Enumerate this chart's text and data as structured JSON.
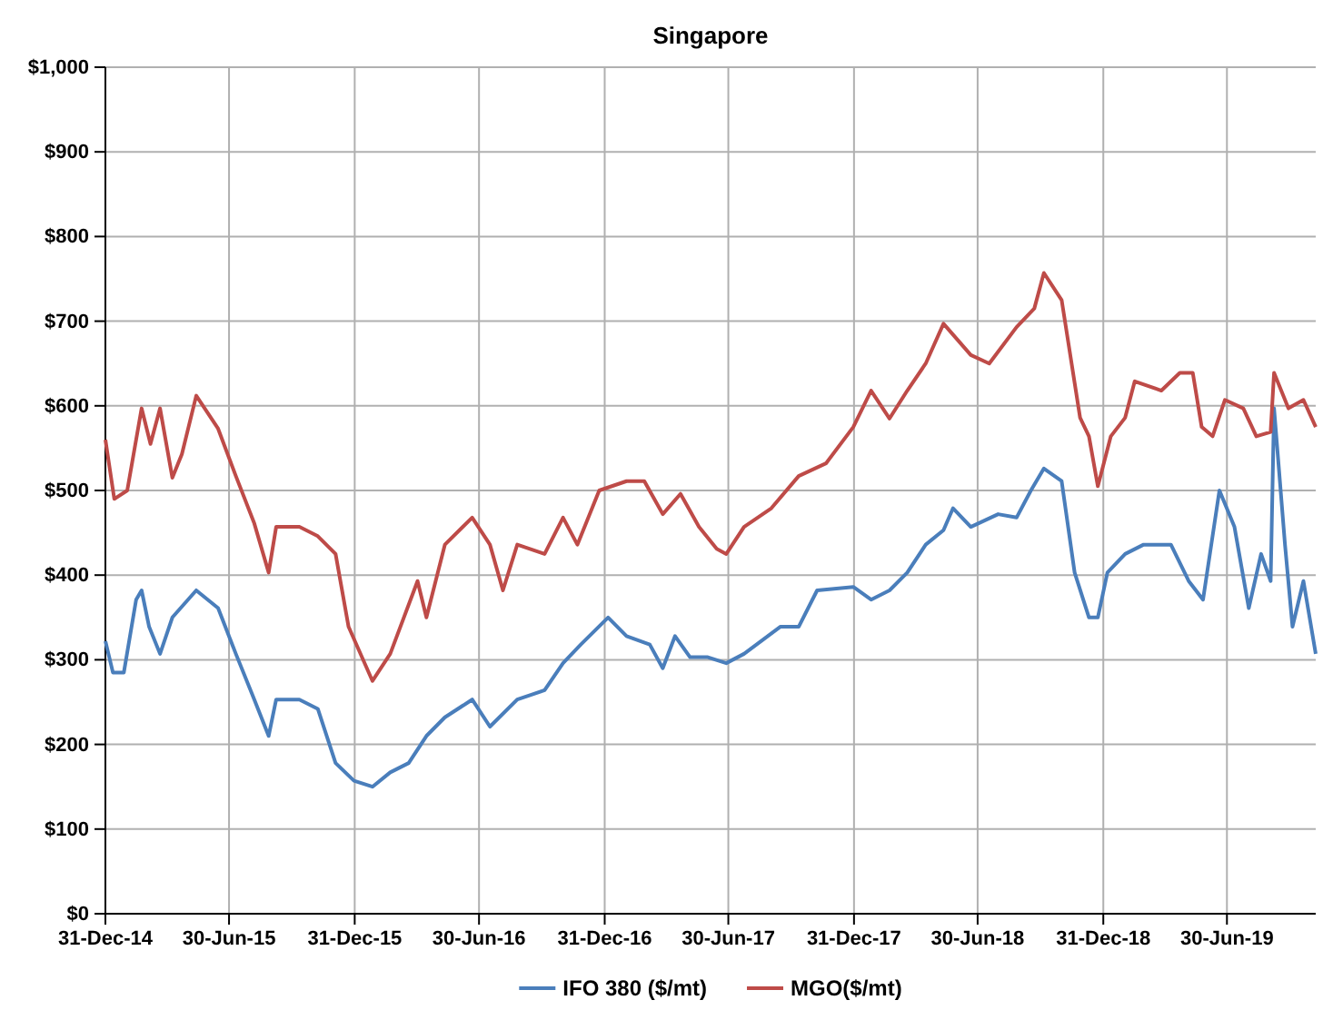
{
  "chart_data": {
    "type": "line",
    "title": "Singapore",
    "xlim": [
      "2014-12-31",
      "2019-11-07"
    ],
    "xticks": [
      {
        "value": "2014-12-31",
        "label": "31-Dec-14"
      },
      {
        "value": "2015-06-30",
        "label": "30-Jun-15"
      },
      {
        "value": "2015-12-31",
        "label": "31-Dec-15"
      },
      {
        "value": "2016-06-30",
        "label": "30-Jun-16"
      },
      {
        "value": "2016-12-31",
        "label": "31-Dec-16"
      },
      {
        "value": "2017-06-30",
        "label": "30-Jun-17"
      },
      {
        "value": "2017-12-31",
        "label": "31-Dec-17"
      },
      {
        "value": "2018-06-30",
        "label": "30-Jun-18"
      },
      {
        "value": "2018-12-31",
        "label": "31-Dec-18"
      },
      {
        "value": "2019-06-30",
        "label": "30-Jun-19"
      }
    ],
    "ylim": [
      0,
      1000
    ],
    "yticks": [
      {
        "value": 0,
        "label": "$0"
      },
      {
        "value": 100,
        "label": "$100"
      },
      {
        "value": 200,
        "label": "$200"
      },
      {
        "value": 300,
        "label": "$300"
      },
      {
        "value": 400,
        "label": "$400"
      },
      {
        "value": 500,
        "label": "$500"
      },
      {
        "value": 600,
        "label": "$600"
      },
      {
        "value": 700,
        "label": "$700"
      },
      {
        "value": 800,
        "label": "$800"
      },
      {
        "value": 900,
        "label": "$900"
      },
      {
        "value": 1000,
        "label": "$1,000"
      }
    ],
    "grid": true,
    "legend": "bottom",
    "line_style": "solid",
    "marker": "none",
    "series": [
      {
        "name": "IFO 380 ($/mt)",
        "color": "#4a7ebb",
        "x": [
          "2014-12-31",
          "2015-01-11",
          "2015-01-27",
          "2015-02-14",
          "2015-02-22",
          "2015-03-05",
          "2015-03-21",
          "2015-04-08",
          "2015-05-13",
          "2015-06-14",
          "2015-07-10",
          "2015-08-06",
          "2015-08-27",
          "2015-09-07",
          "2015-10-11",
          "2015-11-07",
          "2015-12-03",
          "2015-12-30",
          "2016-01-26",
          "2016-02-21",
          "2016-03-19",
          "2016-04-14",
          "2016-05-11",
          "2016-06-20",
          "2016-07-16",
          "2016-08-25",
          "2016-10-04",
          "2016-10-31",
          "2016-11-26",
          "2017-01-05",
          "2017-02-01",
          "2017-03-07",
          "2017-03-26",
          "2017-04-13",
          "2017-05-05",
          "2017-05-31",
          "2017-06-27",
          "2017-07-23",
          "2017-09-14",
          "2017-10-11",
          "2017-11-07",
          "2017-12-30",
          "2018-01-25",
          "2018-02-21",
          "2018-03-19",
          "2018-04-15",
          "2018-05-11",
          "2018-05-25",
          "2018-06-20",
          "2018-07-30",
          "2018-08-26",
          "2018-09-16",
          "2018-10-05",
          "2018-10-31",
          "2018-11-19",
          "2018-12-10",
          "2018-12-23",
          "2019-01-06",
          "2019-02-01",
          "2019-02-28",
          "2019-04-09",
          "2019-05-05",
          "2019-05-26",
          "2019-06-19",
          "2019-07-11",
          "2019-08-01",
          "2019-08-19",
          "2019-09-02",
          "2019-09-07",
          "2019-09-23",
          "2019-10-04",
          "2019-10-20",
          "2019-11-07"
        ],
        "values": [
          322,
          285,
          285,
          371,
          382,
          339,
          307,
          350,
          382,
          361,
          307,
          253,
          210,
          253,
          253,
          242,
          178,
          157,
          150,
          167,
          178,
          210,
          232,
          253,
          221,
          253,
          264,
          296,
          318,
          350,
          328,
          318,
          290,
          328,
          303,
          303,
          296,
          307,
          339,
          339,
          382,
          386,
          371,
          382,
          403,
          436,
          453,
          479,
          457,
          472,
          468,
          500,
          526,
          511,
          403,
          350,
          350,
          403,
          425,
          436,
          436,
          393,
          371,
          500,
          457,
          361,
          425,
          393,
          597,
          436,
          339,
          393,
          307
        ]
      },
      {
        "name": "MGO($/mt)",
        "color": "#be4b48",
        "x": [
          "2014-12-31",
          "2015-01-13",
          "2015-02-01",
          "2015-02-22",
          "2015-03-07",
          "2015-03-21",
          "2015-04-08",
          "2015-04-22",
          "2015-05-13",
          "2015-06-14",
          "2015-07-10",
          "2015-08-06",
          "2015-08-27",
          "2015-09-07",
          "2015-10-11",
          "2015-11-07",
          "2015-12-03",
          "2015-12-22",
          "2016-01-26",
          "2016-02-21",
          "2016-04-01",
          "2016-04-14",
          "2016-05-11",
          "2016-06-20",
          "2016-07-16",
          "2016-08-04",
          "2016-08-25",
          "2016-10-04",
          "2016-10-31",
          "2016-11-21",
          "2016-12-23",
          "2017-02-01",
          "2017-02-27",
          "2017-03-26",
          "2017-04-21",
          "2017-05-18",
          "2017-06-13",
          "2017-06-27",
          "2017-07-23",
          "2017-09-01",
          "2017-10-11",
          "2017-11-20",
          "2017-12-30",
          "2018-01-25",
          "2018-02-21",
          "2018-03-19",
          "2018-04-15",
          "2018-05-11",
          "2018-06-20",
          "2018-07-17",
          "2018-08-26",
          "2018-09-21",
          "2018-10-05",
          "2018-10-31",
          "2018-11-27",
          "2018-12-10",
          "2018-12-23",
          "2019-01-11",
          "2019-02-01",
          "2019-02-15",
          "2019-03-26",
          "2019-04-22",
          "2019-05-11",
          "2019-05-24",
          "2019-06-09",
          "2019-06-27",
          "2019-07-24",
          "2019-08-12",
          "2019-09-02",
          "2019-09-07",
          "2019-09-28",
          "2019-10-20",
          "2019-11-07"
        ],
        "values": [
          560,
          490,
          500,
          597,
          555,
          597,
          515,
          543,
          612,
          573,
          517,
          461,
          403,
          457,
          457,
          446,
          425,
          339,
          275,
          307,
          393,
          350,
          436,
          468,
          436,
          382,
          436,
          425,
          468,
          436,
          500,
          511,
          511,
          472,
          496,
          457,
          431,
          425,
          457,
          479,
          517,
          532,
          575,
          618,
          585,
          618,
          650,
          697,
          660,
          650,
          693,
          715,
          757,
          725,
          586,
          564,
          505,
          564,
          586,
          629,
          618,
          639,
          639,
          575,
          564,
          607,
          597,
          564,
          569,
          639,
          597,
          607,
          575
        ]
      }
    ]
  }
}
